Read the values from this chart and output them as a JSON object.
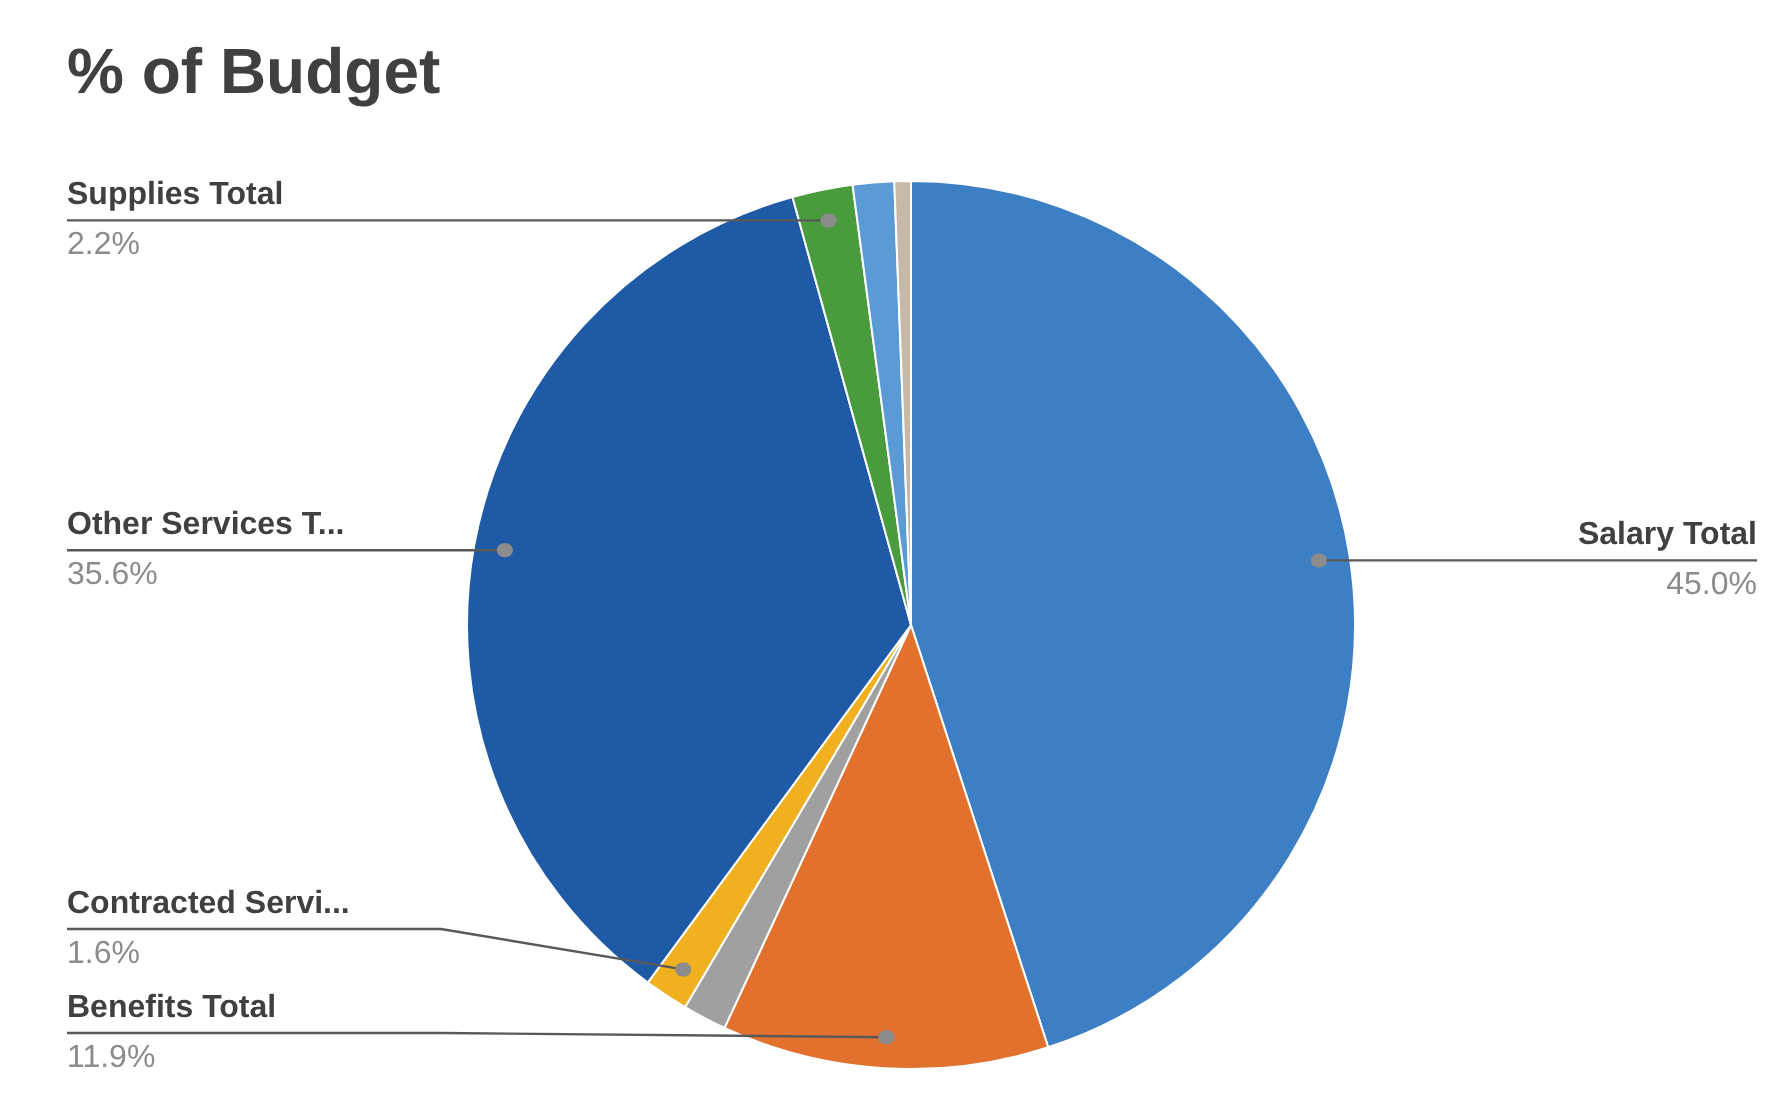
{
  "chart_data": {
    "type": "pie",
    "title": "% of Budget",
    "categories": [
      "Salary Total",
      "Benefits Total",
      null,
      "Contracted Servi...",
      "Other Services T...",
      "Supplies Total",
      null,
      null
    ],
    "values": [
      45.0,
      11.9,
      1.6,
      1.6,
      35.6,
      2.2,
      1.5,
      0.6
    ],
    "colors": [
      "#3d7fc4",
      "#e2712e",
      "#a0a0a0",
      "#f0b020",
      "#1f5aa6",
      "#4a9a3e",
      "#5b9bd5",
      "#c8b8a8"
    ],
    "value_labels": [
      "45.0%",
      "11.9%",
      null,
      "1.6%",
      "35.6%",
      "2.2%",
      null,
      null
    ]
  }
}
